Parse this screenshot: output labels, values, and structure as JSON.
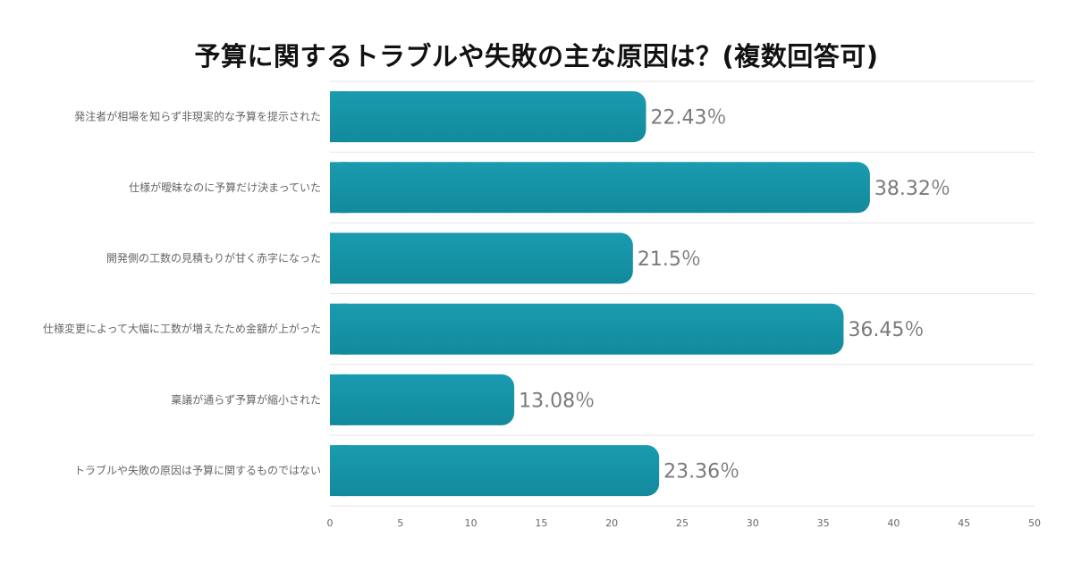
{
  "chart_data": {
    "type": "bar",
    "orientation": "horizontal",
    "title": "予算に関するトラブルや失敗の主な原因は？(複数回答可)",
    "categories": [
      "発注者が相場を知らず非現実的な予算を提示された",
      "仕様が曖昧なのに予算だけ決まっていた",
      "開発側の工数の見積もりが甘く赤字になった",
      "仕様変更によって大幅に工数が増えたため金額が上がった",
      "稟議が通らず予算が縮小された",
      "トラブルや失敗の原因は予算に関するものではない"
    ],
    "values": [
      22.43,
      38.32,
      21.5,
      36.45,
      13.08,
      23.36
    ],
    "value_labels": [
      "22.43％",
      "38.32％",
      "21.5％",
      "36.45％",
      "13.08％",
      "23.36％"
    ],
    "xlim": [
      0,
      50
    ],
    "xticks": [
      "0",
      "5",
      "10",
      "15",
      "20",
      "25",
      "30",
      "35",
      "40",
      "45",
      "50"
    ],
    "grid": "horizontal",
    "bar_color": "#1593a6",
    "legend": "none"
  }
}
